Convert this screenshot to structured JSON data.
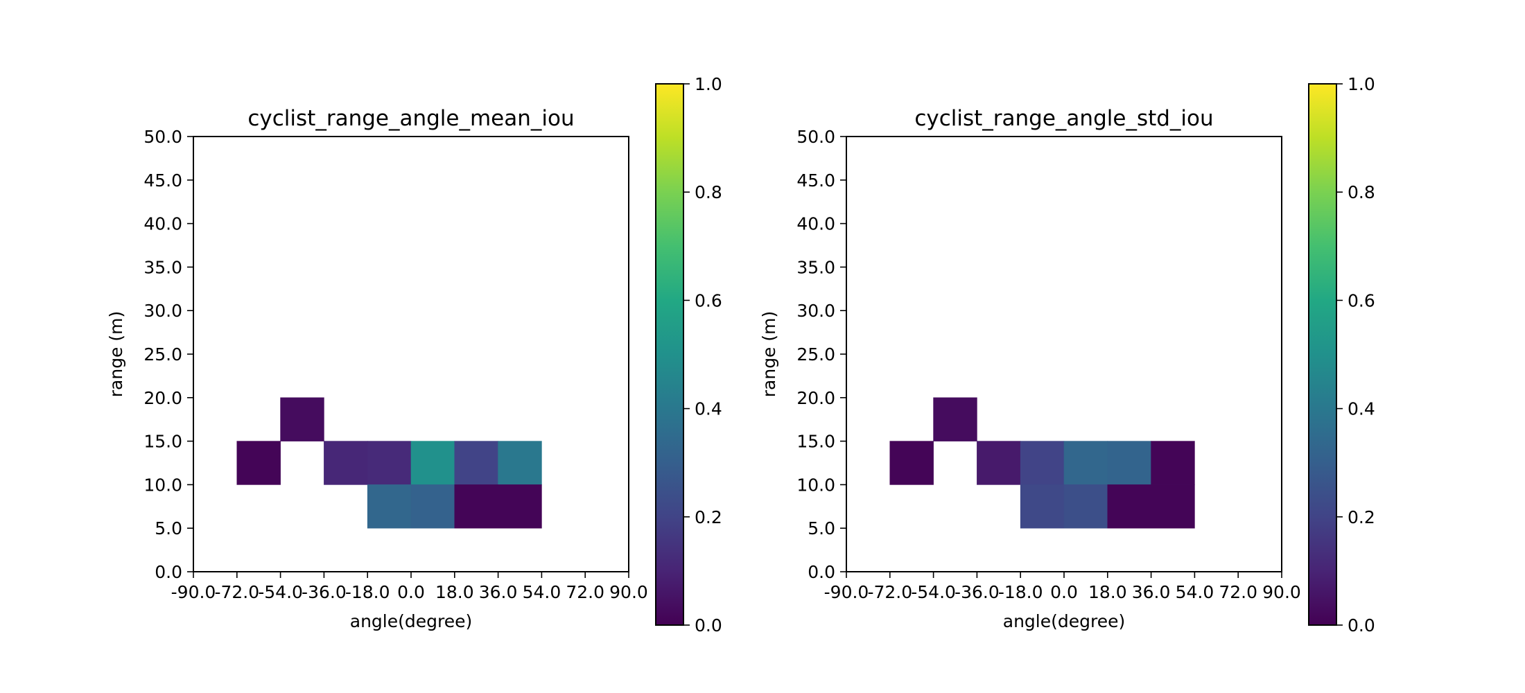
{
  "chart_data": [
    {
      "type": "heatmap",
      "title": "cyclist_range_angle_mean_iou",
      "xlabel": "angle(degree)",
      "ylabel": "range (m)",
      "xlim": [
        -90,
        90
      ],
      "ylim": [
        0,
        50
      ],
      "x_ticks": [
        "-90.0",
        "-72.0",
        "-54.0",
        "-36.0",
        "-18.0",
        "0.0",
        "18.0",
        "36.0",
        "54.0",
        "72.0",
        "90.0"
      ],
      "y_ticks": [
        "0.0",
        "5.0",
        "10.0",
        "15.0",
        "20.0",
        "25.0",
        "30.0",
        "35.0",
        "40.0",
        "45.0",
        "50.0"
      ],
      "colorbar": {
        "colormap": "viridis",
        "range": [
          0,
          1
        ],
        "ticks": [
          "0.0",
          "0.2",
          "0.4",
          "0.6",
          "0.8",
          "1.0"
        ]
      },
      "cells": [
        {
          "angle": [
            -54,
            -36
          ],
          "range": [
            15,
            20
          ],
          "value": 0.03
        },
        {
          "angle": [
            -72,
            -54
          ],
          "range": [
            10,
            15
          ],
          "value": 0.01
        },
        {
          "angle": [
            -36,
            -18
          ],
          "range": [
            10,
            15
          ],
          "value": 0.11
        },
        {
          "angle": [
            -18,
            0
          ],
          "range": [
            10,
            15
          ],
          "value": 0.12
        },
        {
          "angle": [
            0,
            18
          ],
          "range": [
            10,
            15
          ],
          "value": 0.5
        },
        {
          "angle": [
            18,
            36
          ],
          "range": [
            10,
            15
          ],
          "value": 0.2
        },
        {
          "angle": [
            36,
            54
          ],
          "range": [
            10,
            15
          ],
          "value": 0.4
        },
        {
          "angle": [
            -18,
            0
          ],
          "range": [
            5,
            10
          ],
          "value": 0.33
        },
        {
          "angle": [
            0,
            18
          ],
          "range": [
            5,
            10
          ],
          "value": 0.31
        },
        {
          "angle": [
            18,
            36
          ],
          "range": [
            5,
            10
          ],
          "value": 0.01
        },
        {
          "angle": [
            36,
            54
          ],
          "range": [
            5,
            10
          ],
          "value": 0.01
        }
      ]
    },
    {
      "type": "heatmap",
      "title": "cyclist_range_angle_std_iou",
      "xlabel": "angle(degree)",
      "ylabel": "range (m)",
      "xlim": [
        -90,
        90
      ],
      "ylim": [
        0,
        50
      ],
      "x_ticks": [
        "-90.0",
        "-72.0",
        "-54.0",
        "-36.0",
        "-18.0",
        "0.0",
        "18.0",
        "36.0",
        "54.0",
        "72.0",
        "90.0"
      ],
      "y_ticks": [
        "0.0",
        "5.0",
        "10.0",
        "15.0",
        "20.0",
        "25.0",
        "30.0",
        "35.0",
        "40.0",
        "45.0",
        "50.0"
      ],
      "colorbar": {
        "colormap": "viridis",
        "range": [
          0,
          1
        ],
        "ticks": [
          "0.0",
          "0.2",
          "0.4",
          "0.6",
          "0.8",
          "1.0"
        ]
      },
      "cells": [
        {
          "angle": [
            -54,
            -36
          ],
          "range": [
            15,
            20
          ],
          "value": 0.03
        },
        {
          "angle": [
            -72,
            -54
          ],
          "range": [
            10,
            15
          ],
          "value": 0.01
        },
        {
          "angle": [
            -36,
            -18
          ],
          "range": [
            10,
            15
          ],
          "value": 0.07
        },
        {
          "angle": [
            -18,
            0
          ],
          "range": [
            10,
            15
          ],
          "value": 0.2
        },
        {
          "angle": [
            0,
            18
          ],
          "range": [
            10,
            15
          ],
          "value": 0.33
        },
        {
          "angle": [
            18,
            36
          ],
          "range": [
            10,
            15
          ],
          "value": 0.32
        },
        {
          "angle": [
            36,
            54
          ],
          "range": [
            10,
            15
          ],
          "value": 0.01
        },
        {
          "angle": [
            -18,
            0
          ],
          "range": [
            5,
            10
          ],
          "value": 0.22
        },
        {
          "angle": [
            0,
            18
          ],
          "range": [
            5,
            10
          ],
          "value": 0.24
        },
        {
          "angle": [
            18,
            36
          ],
          "range": [
            5,
            10
          ],
          "value": 0.01
        },
        {
          "angle": [
            36,
            54
          ],
          "range": [
            5,
            10
          ],
          "value": 0.01
        }
      ]
    }
  ]
}
